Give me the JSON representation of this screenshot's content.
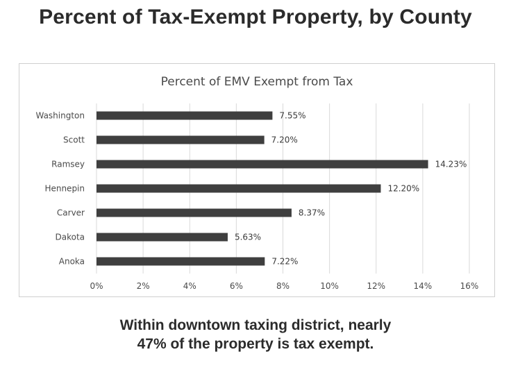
{
  "slide": {
    "title": "Percent of Tax-Exempt Property, by County",
    "caption_line1": "Within downtown taxing district, nearly",
    "caption_line2": "47% of the property is tax exempt."
  },
  "chart_data": {
    "type": "bar",
    "orientation": "horizontal",
    "title": "Percent of EMV Exempt from Tax",
    "xlabel": "",
    "ylabel": "",
    "categories": [
      "Washington",
      "Scott",
      "Ramsey",
      "Hennepin",
      "Carver",
      "Dakota",
      "Anoka"
    ],
    "values": [
      7.55,
      7.2,
      14.23,
      12.2,
      8.37,
      5.63,
      7.22
    ],
    "data_labels": [
      "7.55%",
      "7.20%",
      "14.23%",
      "12.20%",
      "8.37%",
      "5.63%",
      "7.22%"
    ],
    "xlim": [
      0,
      16
    ],
    "x_ticks": [
      0,
      2,
      4,
      6,
      8,
      10,
      12,
      14,
      16
    ],
    "x_tick_labels": [
      "0%",
      "2%",
      "4%",
      "6%",
      "8%",
      "10%",
      "12%",
      "14%",
      "16%"
    ],
    "grid": "vertical",
    "legend": "none",
    "bar_color": "#3f3f3f",
    "grid_color": "#d9d9d9"
  }
}
